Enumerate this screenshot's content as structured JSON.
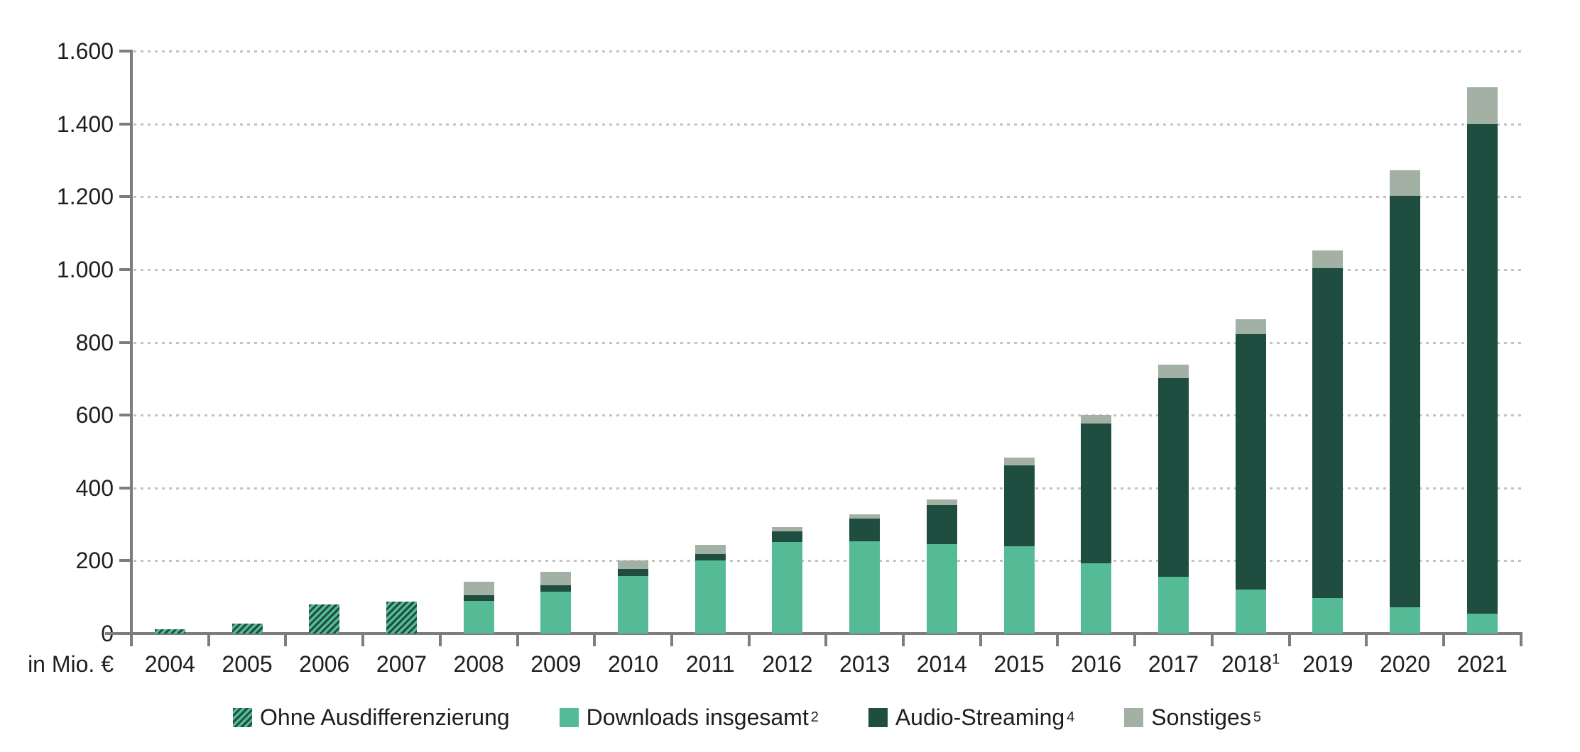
{
  "chart_data": {
    "type": "bar",
    "stacked": true,
    "unit_label": "in Mio. €",
    "ylim": [
      0,
      1600
    ],
    "ytick_step": 200,
    "grid": "dotted-horizontal",
    "legend_position": "bottom",
    "yticks": [
      {
        "value": 0,
        "label": "0"
      },
      {
        "value": 200,
        "label": "200"
      },
      {
        "value": 400,
        "label": "400"
      },
      {
        "value": 600,
        "label": "600"
      },
      {
        "value": 800,
        "label": "800"
      },
      {
        "value": 1000,
        "label": "1.000"
      },
      {
        "value": 1200,
        "label": "1.200"
      },
      {
        "value": 1400,
        "label": "1.400"
      },
      {
        "value": 1600,
        "label": "1.600"
      }
    ],
    "categories": [
      {
        "label": "2004",
        "sup": ""
      },
      {
        "label": "2005",
        "sup": ""
      },
      {
        "label": "2006",
        "sup": ""
      },
      {
        "label": "2007",
        "sup": ""
      },
      {
        "label": "2008",
        "sup": ""
      },
      {
        "label": "2009",
        "sup": ""
      },
      {
        "label": "2010",
        "sup": ""
      },
      {
        "label": "2011",
        "sup": ""
      },
      {
        "label": "2012",
        "sup": ""
      },
      {
        "label": "2013",
        "sup": ""
      },
      {
        "label": "2014",
        "sup": ""
      },
      {
        "label": "2015",
        "sup": ""
      },
      {
        "label": "2016",
        "sup": ""
      },
      {
        "label": "2017",
        "sup": ""
      },
      {
        "label": "2018",
        "sup": "1"
      },
      {
        "label": "2019",
        "sup": ""
      },
      {
        "label": "2020",
        "sup": ""
      },
      {
        "label": "2021",
        "sup": ""
      }
    ],
    "series": [
      {
        "key": "ohne-ausdifferenzierung",
        "name": "Ohne Ausdifferenzierung",
        "sup": "",
        "color": "#55BB97",
        "pattern": "hatch",
        "pattern_color": "#1F4E40",
        "values": [
          12,
          28,
          80,
          87,
          0,
          0,
          0,
          0,
          0,
          0,
          0,
          0,
          0,
          0,
          0,
          0,
          0,
          0
        ]
      },
      {
        "key": "downloads-insgesamt",
        "name": "Downloads insgesamt",
        "sup": "2",
        "color": "#55BB97",
        "pattern": "solid",
        "values": [
          0,
          0,
          0,
          0,
          90,
          115,
          158,
          200,
          252,
          253,
          245,
          240,
          193,
          155,
          121,
          98,
          72,
          55
        ]
      },
      {
        "key": "audio-streaming",
        "name": "Audio-Streaming",
        "sup": "4",
        "color": "#1F4E40",
        "pattern": "solid",
        "values": [
          0,
          0,
          0,
          0,
          15,
          18,
          19,
          18,
          29,
          62,
          107,
          221,
          384,
          547,
          702,
          905,
          1131,
          1345
        ]
      },
      {
        "key": "sonstiges",
        "name": "Sonstiges",
        "sup": "5",
        "color": "#A3B0A4",
        "pattern": "solid",
        "values": [
          0,
          0,
          0,
          0,
          38,
          36,
          23,
          25,
          12,
          13,
          16,
          22,
          24,
          36,
          41,
          50,
          70,
          100
        ]
      }
    ],
    "axis_color": "#7D7D7D",
    "grid_color": "#C3C3C3",
    "text_color": "#1E1E1E"
  }
}
